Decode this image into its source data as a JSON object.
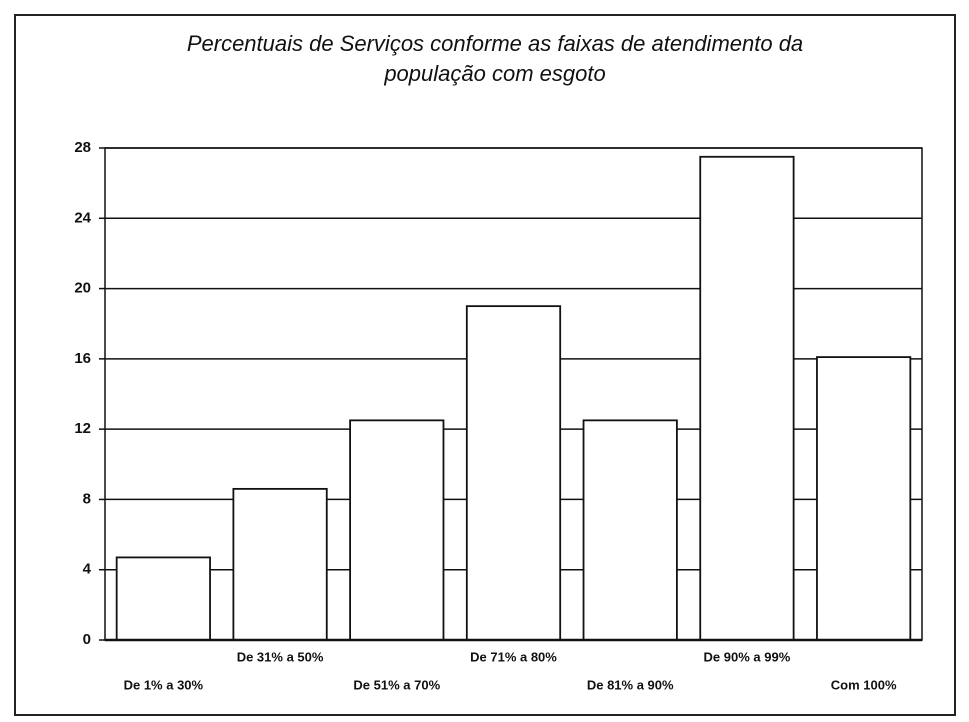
{
  "chart_data": {
    "type": "bar",
    "title": [
      "Percentuais de Serviços conforme as faixas de atendimento da",
      "população com esgoto"
    ],
    "categories": [
      "De 1% a 30%",
      "De 31% a 50%",
      "De 51% a 70%",
      "De 71% a 80%",
      "De 81% a 90%",
      "De 90% a 99%",
      "Com 100%"
    ],
    "values": [
      4.7,
      8.6,
      12.5,
      19,
      12.5,
      27.5,
      16.1
    ],
    "color": "#ffffff",
    "ylim": [
      0,
      28
    ],
    "yticks": [
      0,
      4,
      8,
      12,
      16,
      20,
      24,
      28
    ],
    "grid": true
  }
}
